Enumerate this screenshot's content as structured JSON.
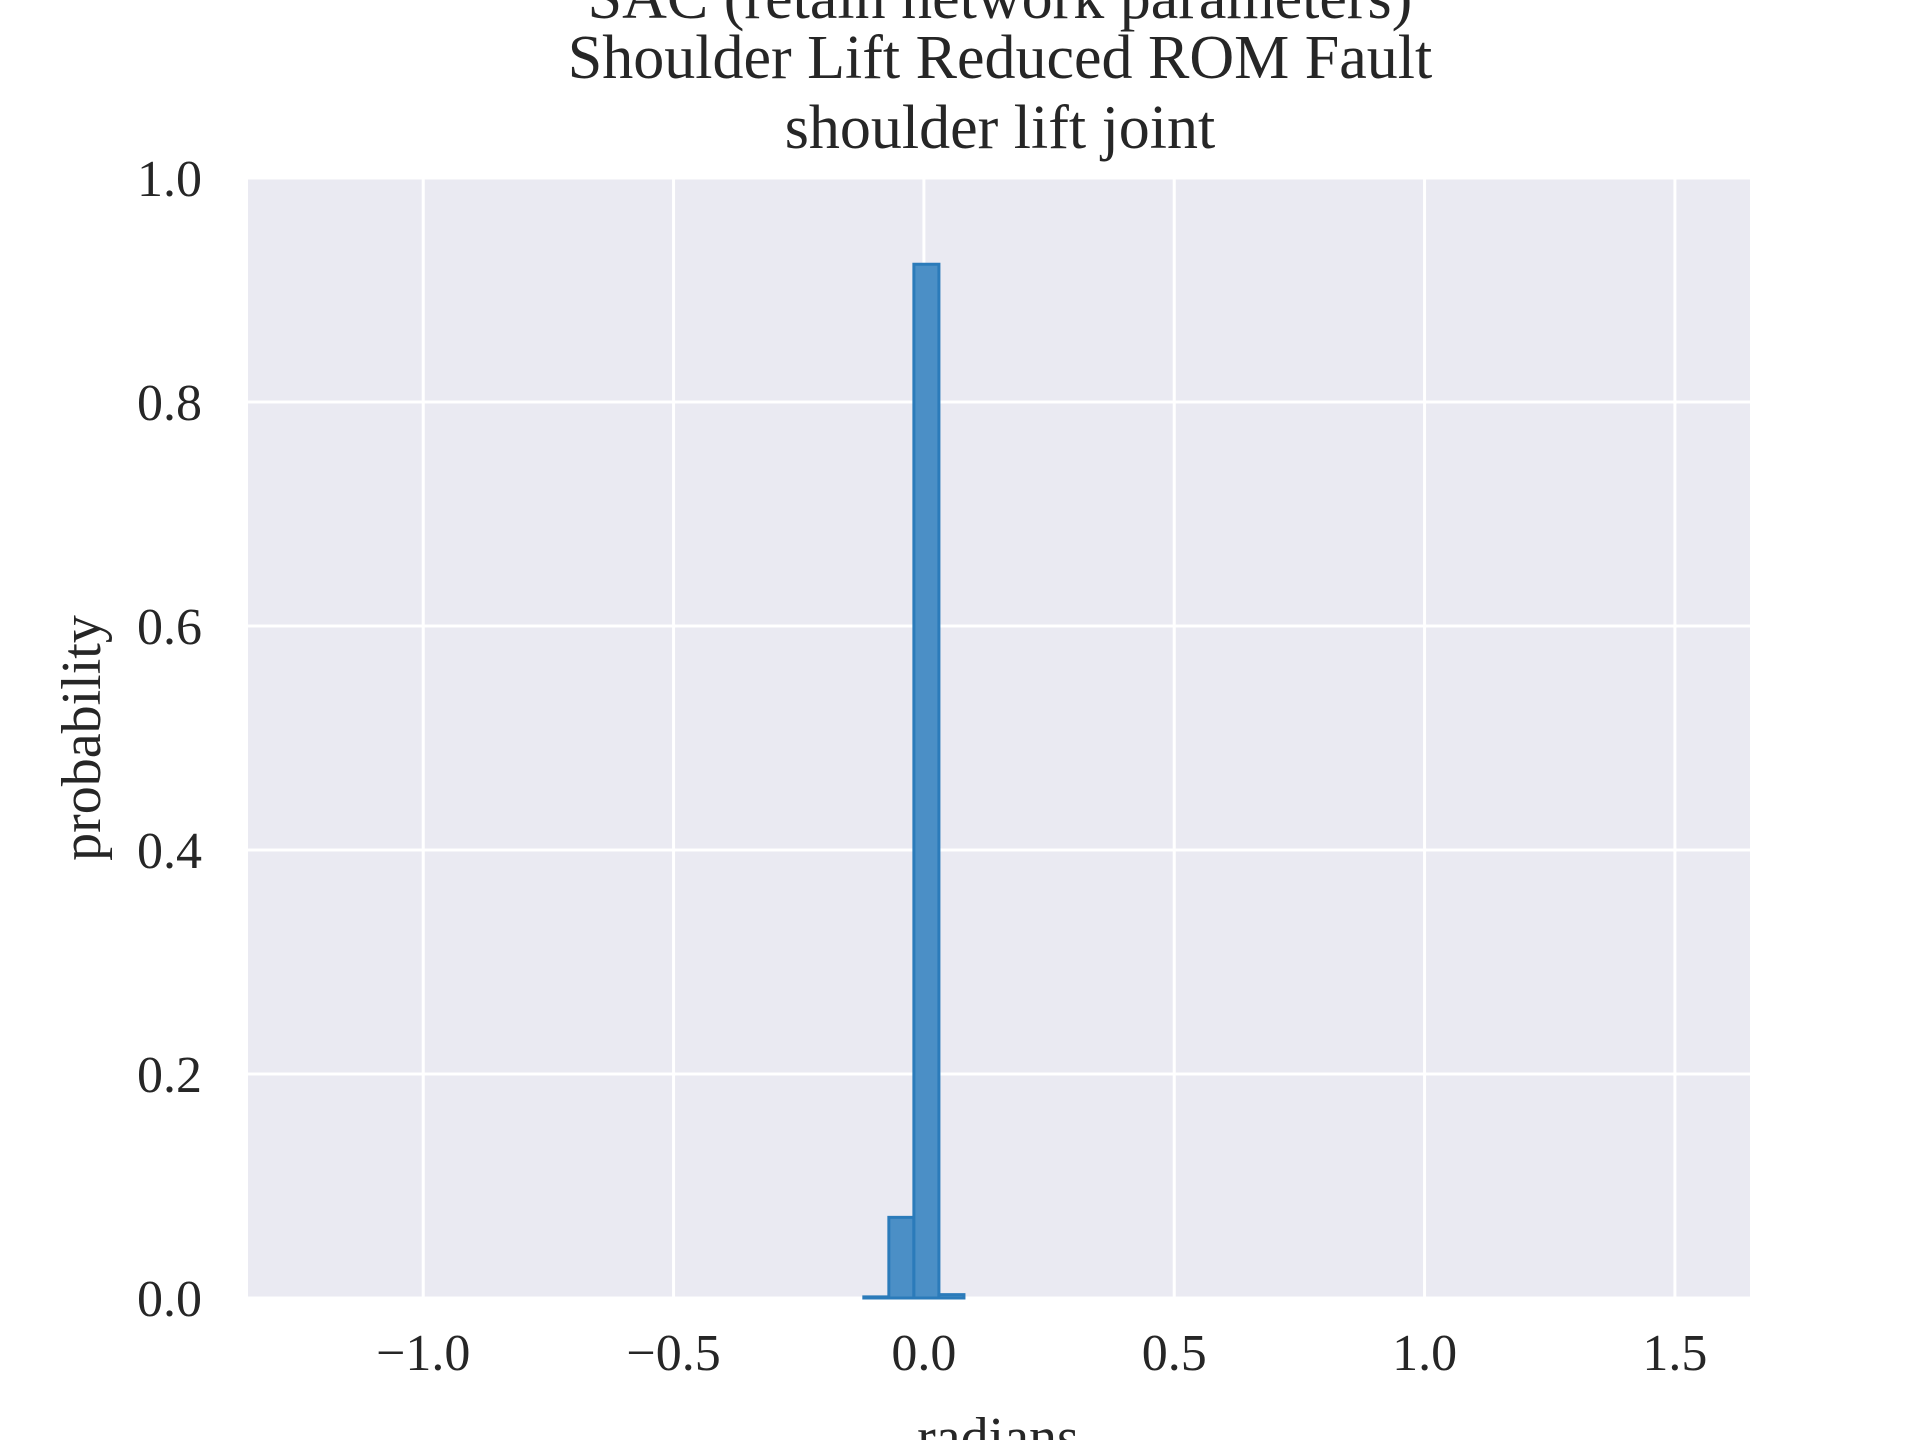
{
  "chart_data": {
    "type": "bar",
    "title_lines": [
      "SAC (retain network parameters)",
      "Shoulder Lift Reduced ROM Fault",
      "shoulder lift joint"
    ],
    "xlabel": "radians",
    "ylabel": "probability",
    "xlim": [
      -1.35,
      1.65
    ],
    "ylim": [
      0.0,
      1.0
    ],
    "xticks": [
      -1.0,
      -0.5,
      0.0,
      0.5,
      1.0,
      1.5
    ],
    "xtick_labels": [
      "−1.0",
      "−0.5",
      "0.0",
      "0.5",
      "1.0",
      "1.5"
    ],
    "yticks": [
      0.0,
      0.2,
      0.4,
      0.6,
      0.8,
      1.0
    ],
    "ytick_labels": [
      "0.0",
      "0.2",
      "0.4",
      "0.6",
      "0.8",
      "1.0"
    ],
    "grid": true,
    "background_color": "#eaeaf2",
    "grid_color": "#ffffff",
    "bar_fill_color": "#4b8fc6",
    "bar_edge_color": "#2b7bba",
    "text_color": "#262626",
    "bins": [
      {
        "x0": -0.12,
        "x1": -0.07,
        "value": 0.001
      },
      {
        "x0": -0.07,
        "x1": -0.02,
        "value": 0.072
      },
      {
        "x0": -0.02,
        "x1": 0.03,
        "value": 0.923
      },
      {
        "x0": 0.03,
        "x1": 0.08,
        "value": 0.003
      }
    ]
  }
}
